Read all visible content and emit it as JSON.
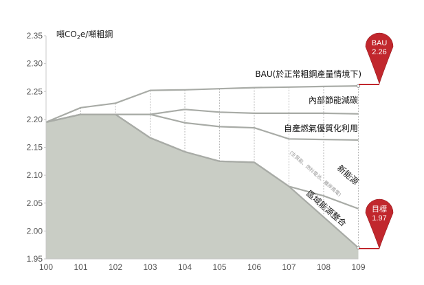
{
  "chart_data": {
    "type": "area",
    "x": [
      100,
      101,
      102,
      103,
      104,
      105,
      106,
      107,
      108,
      109
    ],
    "ylim": [
      1.95,
      2.35
    ],
    "yticks": [
      "2.35",
      "2.30",
      "2.25",
      "2.20",
      "2.15",
      "2.10",
      "2.05",
      "2.00",
      "1.95"
    ],
    "xticks": [
      "100",
      "101",
      "102",
      "103",
      "104",
      "105",
      "106",
      "107",
      "108",
      "109"
    ],
    "ylabel_prefix": "噸CO",
    "ylabel_sub": "2",
    "ylabel_suffix": "e/噸粗鋼",
    "series": [
      {
        "name": "BAU(於正常粗鋼產量情境下)",
        "values": [
          2.195,
          2.221,
          2.229,
          2.252,
          2.253,
          2.255,
          2.257,
          2.258,
          2.259,
          2.26
        ]
      },
      {
        "name": "內部節能減碳",
        "values": [
          2.195,
          2.209,
          2.209,
          2.209,
          2.218,
          2.213,
          2.211,
          2.211,
          2.211,
          2.21
        ]
      },
      {
        "name": "自產燃氣優質化利用",
        "values": [
          2.195,
          2.209,
          2.209,
          2.209,
          2.194,
          2.187,
          2.185,
          2.165,
          2.164,
          2.163
        ]
      },
      {
        "name": "新能源",
        "note": "(生質能、燃料電池、離岸風電)",
        "values": [
          2.195,
          2.209,
          2.209,
          2.167,
          2.142,
          2.125,
          2.123,
          2.08,
          2.063,
          2.04
        ]
      },
      {
        "name": "區域能源整合",
        "values": [
          2.195,
          2.209,
          2.209,
          2.167,
          2.142,
          2.125,
          2.123,
          2.08,
          2.025,
          1.97
        ]
      }
    ],
    "markers": [
      {
        "label": "BAU",
        "value": "2.26",
        "color": "#c1272d"
      },
      {
        "label": "目標",
        "value": "1.97",
        "color": "#c1272d"
      }
    ],
    "grid": "dotted vertical lines at each year"
  }
}
